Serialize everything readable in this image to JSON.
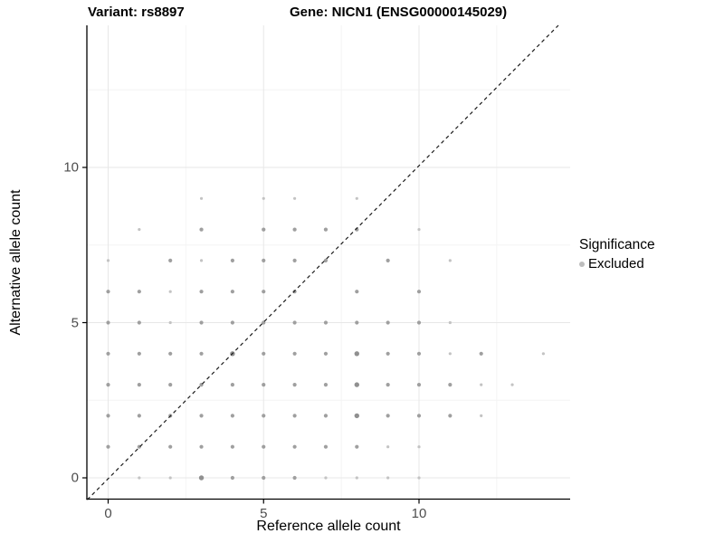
{
  "header": {
    "title_left": "Variant: rs8897",
    "title_right": "Gene: NICN1 (ENSG00000145029)"
  },
  "legend": {
    "title": "Significance",
    "items": [
      {
        "label": "Excluded",
        "color": "#bdbdbd"
      }
    ]
  },
  "chart_data": {
    "type": "scatter",
    "title": "Variant: rs8897 — Gene: NICN1 (ENSG00000145029)",
    "xlabel": "Reference allele count",
    "ylabel": "Alternative allele count",
    "x_ticks": [
      0,
      5,
      10
    ],
    "y_ticks": [
      0,
      5,
      10
    ],
    "x_minor_ticks": [
      2.5,
      7.5,
      12.5
    ],
    "y_minor_ticks": [
      2.5,
      7.5,
      12.5
    ],
    "xlim": [
      -0.67,
      14.85
    ],
    "ylim": [
      -0.69,
      15.25
    ],
    "grid": true,
    "legend_position": "right",
    "identity_line": {
      "shown": true,
      "style": "dashed",
      "color": "#1c1c1c"
    },
    "series_name": "Excluded",
    "size_classes": {
      "1": {
        "r": 1.6,
        "color": "#c3c3c3"
      },
      "2": {
        "r": 2.1,
        "color": "#9f9f9f"
      },
      "3": {
        "r": 2.7,
        "color": "#909090"
      }
    },
    "points": [
      {
        "x": 1,
        "y": 0,
        "s": 1
      },
      {
        "x": 2,
        "y": 0,
        "s": 1
      },
      {
        "x": 3,
        "y": 0,
        "s": 3
      },
      {
        "x": 4,
        "y": 0,
        "s": 2
      },
      {
        "x": 5,
        "y": 0,
        "s": 2
      },
      {
        "x": 6,
        "y": 0,
        "s": 2
      },
      {
        "x": 7,
        "y": 0,
        "s": 1
      },
      {
        "x": 8,
        "y": 0,
        "s": 1
      },
      {
        "x": 9,
        "y": 0,
        "s": 1
      },
      {
        "x": 10,
        "y": 0,
        "s": 1
      },
      {
        "x": 0,
        "y": 1,
        "s": 2
      },
      {
        "x": 1,
        "y": 1,
        "s": 2
      },
      {
        "x": 2,
        "y": 1,
        "s": 2
      },
      {
        "x": 3,
        "y": 1,
        "s": 2
      },
      {
        "x": 4,
        "y": 1,
        "s": 2
      },
      {
        "x": 5,
        "y": 1,
        "s": 2
      },
      {
        "x": 6,
        "y": 1,
        "s": 2
      },
      {
        "x": 7,
        "y": 1,
        "s": 2
      },
      {
        "x": 8,
        "y": 1,
        "s": 2
      },
      {
        "x": 9,
        "y": 1,
        "s": 1
      },
      {
        "x": 10,
        "y": 1,
        "s": 1
      },
      {
        "x": 0,
        "y": 2,
        "s": 2
      },
      {
        "x": 1,
        "y": 2,
        "s": 2
      },
      {
        "x": 2,
        "y": 2,
        "s": 2
      },
      {
        "x": 3,
        "y": 2,
        "s": 2
      },
      {
        "x": 4,
        "y": 2,
        "s": 2
      },
      {
        "x": 5,
        "y": 2,
        "s": 2
      },
      {
        "x": 6,
        "y": 2,
        "s": 2
      },
      {
        "x": 7,
        "y": 2,
        "s": 2
      },
      {
        "x": 8,
        "y": 2,
        "s": 3
      },
      {
        "x": 9,
        "y": 2,
        "s": 2
      },
      {
        "x": 10,
        "y": 2,
        "s": 2
      },
      {
        "x": 11,
        "y": 2,
        "s": 2
      },
      {
        "x": 12,
        "y": 2,
        "s": 1
      },
      {
        "x": 0,
        "y": 3,
        "s": 2
      },
      {
        "x": 1,
        "y": 3,
        "s": 2
      },
      {
        "x": 2,
        "y": 3,
        "s": 2
      },
      {
        "x": 3,
        "y": 3,
        "s": 2
      },
      {
        "x": 4,
        "y": 3,
        "s": 2
      },
      {
        "x": 5,
        "y": 3,
        "s": 2
      },
      {
        "x": 6,
        "y": 3,
        "s": 2
      },
      {
        "x": 7,
        "y": 3,
        "s": 2
      },
      {
        "x": 8,
        "y": 3,
        "s": 3
      },
      {
        "x": 9,
        "y": 3,
        "s": 2
      },
      {
        "x": 10,
        "y": 3,
        "s": 2
      },
      {
        "x": 11,
        "y": 3,
        "s": 2
      },
      {
        "x": 12,
        "y": 3,
        "s": 1
      },
      {
        "x": 13,
        "y": 3,
        "s": 1
      },
      {
        "x": 0,
        "y": 4,
        "s": 2
      },
      {
        "x": 1,
        "y": 4,
        "s": 2
      },
      {
        "x": 2,
        "y": 4,
        "s": 2
      },
      {
        "x": 3,
        "y": 4,
        "s": 2
      },
      {
        "x": 4,
        "y": 4,
        "s": 3
      },
      {
        "x": 5,
        "y": 4,
        "s": 2
      },
      {
        "x": 6,
        "y": 4,
        "s": 2
      },
      {
        "x": 7,
        "y": 4,
        "s": 2
      },
      {
        "x": 8,
        "y": 4,
        "s": 3
      },
      {
        "x": 9,
        "y": 4,
        "s": 2
      },
      {
        "x": 10,
        "y": 4,
        "s": 2
      },
      {
        "x": 11,
        "y": 4,
        "s": 1
      },
      {
        "x": 12,
        "y": 4,
        "s": 2
      },
      {
        "x": 14,
        "y": 4,
        "s": 1
      },
      {
        "x": 0,
        "y": 5,
        "s": 2
      },
      {
        "x": 1,
        "y": 5,
        "s": 2
      },
      {
        "x": 2,
        "y": 5,
        "s": 1
      },
      {
        "x": 3,
        "y": 5,
        "s": 2
      },
      {
        "x": 4,
        "y": 5,
        "s": 2
      },
      {
        "x": 5,
        "y": 5,
        "s": 2
      },
      {
        "x": 6,
        "y": 5,
        "s": 2
      },
      {
        "x": 7,
        "y": 5,
        "s": 2
      },
      {
        "x": 8,
        "y": 5,
        "s": 2
      },
      {
        "x": 9,
        "y": 5,
        "s": 2
      },
      {
        "x": 10,
        "y": 5,
        "s": 2
      },
      {
        "x": 11,
        "y": 5,
        "s": 1
      },
      {
        "x": 0,
        "y": 6,
        "s": 2
      },
      {
        "x": 1,
        "y": 6,
        "s": 2
      },
      {
        "x": 2,
        "y": 6,
        "s": 1
      },
      {
        "x": 3,
        "y": 6,
        "s": 2
      },
      {
        "x": 4,
        "y": 6,
        "s": 2
      },
      {
        "x": 5,
        "y": 6,
        "s": 2
      },
      {
        "x": 6,
        "y": 6,
        "s": 2
      },
      {
        "x": 8,
        "y": 6,
        "s": 2
      },
      {
        "x": 10,
        "y": 6,
        "s": 2
      },
      {
        "x": 0,
        "y": 7,
        "s": 1
      },
      {
        "x": 2,
        "y": 7,
        "s": 2
      },
      {
        "x": 3,
        "y": 7,
        "s": 1
      },
      {
        "x": 4,
        "y": 7,
        "s": 2
      },
      {
        "x": 5,
        "y": 7,
        "s": 2
      },
      {
        "x": 6,
        "y": 7,
        "s": 2
      },
      {
        "x": 7,
        "y": 7,
        "s": 2
      },
      {
        "x": 9,
        "y": 7,
        "s": 2
      },
      {
        "x": 11,
        "y": 7,
        "s": 1
      },
      {
        "x": 1,
        "y": 8,
        "s": 1
      },
      {
        "x": 3,
        "y": 8,
        "s": 2
      },
      {
        "x": 5,
        "y": 8,
        "s": 2
      },
      {
        "x": 6,
        "y": 8,
        "s": 2
      },
      {
        "x": 7,
        "y": 8,
        "s": 2
      },
      {
        "x": 8,
        "y": 8,
        "s": 2
      },
      {
        "x": 10,
        "y": 8,
        "s": 1
      },
      {
        "x": 3,
        "y": 9,
        "s": 1
      },
      {
        "x": 5,
        "y": 9,
        "s": 1
      },
      {
        "x": 6,
        "y": 9,
        "s": 1
      },
      {
        "x": 8,
        "y": 9,
        "s": 1
      }
    ]
  }
}
